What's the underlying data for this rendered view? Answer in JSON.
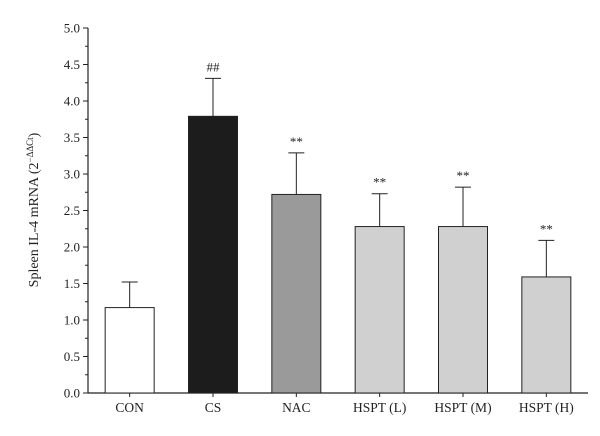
{
  "chart_data": {
    "type": "bar",
    "ylabel": "Spleen IL-4 mRNA (2",
    "ylabel_superscript": "−ΔΔCt",
    "ylabel_close": ")",
    "ylim": [
      0.0,
      5.0
    ],
    "yticks": [
      "0.0",
      "0.5",
      "1.0",
      "1.5",
      "2.0",
      "2.5",
      "3.0",
      "3.5",
      "4.0",
      "4.5",
      "5.0"
    ],
    "categories": [
      "CON",
      "CS",
      "NAC",
      "HSPT (L)",
      "HSPT (M)",
      "HSPT (H)"
    ],
    "values": [
      1.17,
      3.79,
      2.72,
      2.28,
      2.28,
      1.59
    ],
    "errors": [
      0.35,
      0.52,
      0.57,
      0.45,
      0.54,
      0.5
    ],
    "significance": [
      "",
      "##",
      "**",
      "**",
      "**",
      "**"
    ],
    "bar_colors": [
      "#ffffff",
      "#1c1c1c",
      "#9a9a9a",
      "#d0d0d0",
      "#d0d0d0",
      "#d0d0d0"
    ]
  }
}
